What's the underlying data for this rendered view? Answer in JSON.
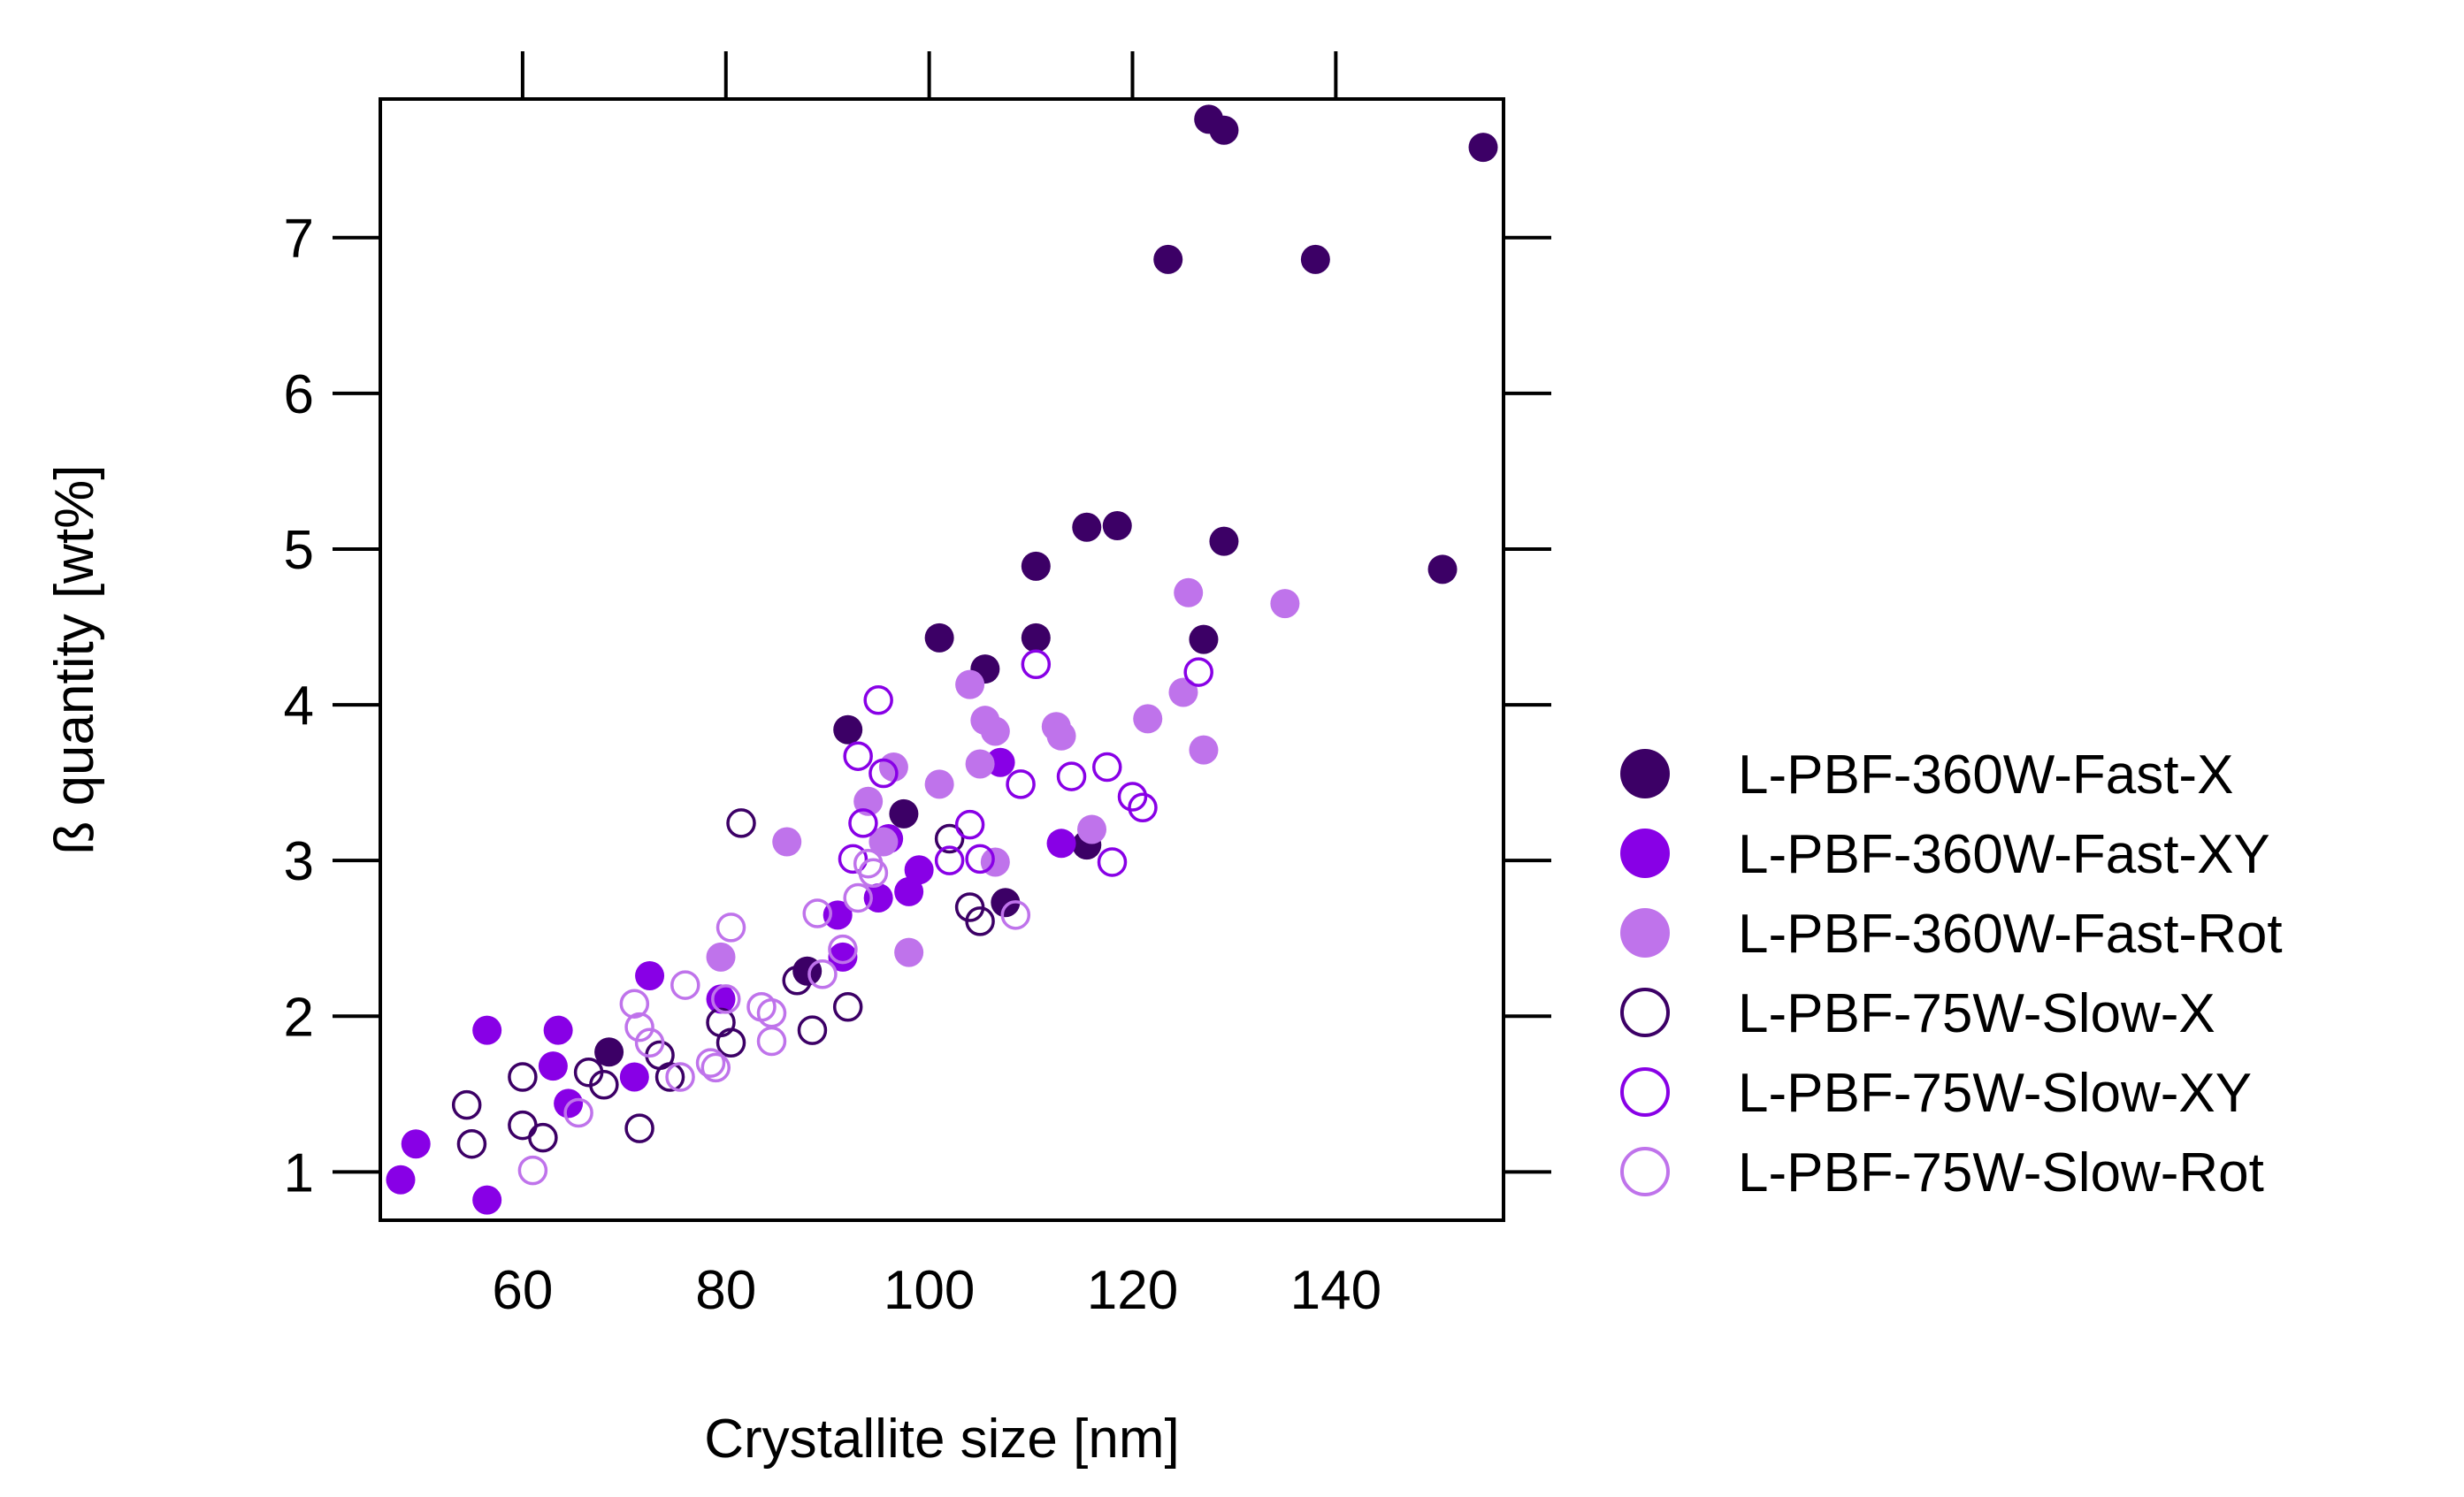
{
  "chart_data": {
    "type": "scatter",
    "title": "",
    "xlabel": "Crystallite size [nm]",
    "ylabel": "ß quantity [wt%]",
    "xlim": [
      46.0,
      156.5
    ],
    "ylim": [
      0.69,
      7.89
    ],
    "xticks": [
      60,
      80,
      100,
      120,
      140
    ],
    "yticks": [
      1,
      2,
      3,
      4,
      5,
      6,
      7
    ],
    "legend_position": "right",
    "series": [
      {
        "name": "L-PBF-360W-Fast-X",
        "color": "#3c0066",
        "filled": true,
        "points": [
          [
            127.5,
            7.76
          ],
          [
            129,
            7.69
          ],
          [
            154.5,
            7.58
          ],
          [
            123.5,
            6.86
          ],
          [
            138,
            6.86
          ],
          [
            115.5,
            5.14
          ],
          [
            118.5,
            5.15
          ],
          [
            110.5,
            4.89
          ],
          [
            129,
            5.05
          ],
          [
            150.5,
            4.87
          ],
          [
            101,
            4.43
          ],
          [
            110.5,
            4.43
          ],
          [
            105.5,
            4.23
          ],
          [
            127,
            4.42
          ],
          [
            92,
            3.84
          ],
          [
            97.5,
            3.3
          ],
          [
            115.5,
            3.1
          ],
          [
            107.5,
            2.73
          ],
          [
            88,
            2.29
          ],
          [
            68.5,
            1.77
          ]
        ]
      },
      {
        "name": "L-PBF-360W-Fast-XY",
        "color": "#8800e6",
        "filled": true,
        "points": [
          [
            56.5,
            1.91
          ],
          [
            63.5,
            1.91
          ],
          [
            63,
            1.68
          ],
          [
            64.5,
            1.44
          ],
          [
            49.5,
            1.18
          ],
          [
            48,
            0.95
          ],
          [
            56.5,
            0.82
          ],
          [
            71,
            1.61
          ],
          [
            72.5,
            2.26
          ],
          [
            79.5,
            2.11
          ],
          [
            91.5,
            2.38
          ],
          [
            91,
            2.65
          ],
          [
            95,
            2.76
          ],
          [
            98,
            2.8
          ],
          [
            99,
            2.94
          ],
          [
            96,
            3.14
          ],
          [
            107,
            3.63
          ],
          [
            113,
            3.11
          ]
        ]
      },
      {
        "name": "L-PBF-360W-Fast-Rot",
        "color": "#bf73eb",
        "filled": true,
        "points": [
          [
            79.5,
            2.38
          ],
          [
            86,
            3.12
          ],
          [
            94,
            3.38
          ],
          [
            95.5,
            3.12
          ],
          [
            96.5,
            3.6
          ],
          [
            98,
            2.41
          ],
          [
            101,
            3.49
          ],
          [
            104,
            4.13
          ],
          [
            105,
            3.62
          ],
          [
            105.5,
            3.9
          ],
          [
            106.5,
            3.83
          ],
          [
            106.5,
            2.99
          ],
          [
            112.5,
            3.86
          ],
          [
            113,
            3.8
          ],
          [
            116,
            3.2
          ],
          [
            121.5,
            3.91
          ],
          [
            125,
            4.08
          ],
          [
            125.5,
            4.72
          ],
          [
            127,
            3.71
          ],
          [
            135,
            4.65
          ]
        ]
      },
      {
        "name": "L-PBF-75W-Slow-X",
        "color": "#3c0066",
        "filled": false,
        "points": [
          [
            54.5,
            1.43
          ],
          [
            55,
            1.18
          ],
          [
            60,
            1.3
          ],
          [
            60,
            1.61
          ],
          [
            62,
            1.22
          ],
          [
            66.5,
            1.64
          ],
          [
            68,
            1.56
          ],
          [
            71.5,
            1.28
          ],
          [
            73.5,
            1.75
          ],
          [
            74.5,
            1.61
          ],
          [
            79.5,
            1.96
          ],
          [
            80.5,
            1.83
          ],
          [
            81.5,
            3.24
          ],
          [
            87,
            2.23
          ],
          [
            88.5,
            1.91
          ],
          [
            92,
            2.06
          ],
          [
            102,
            3.14
          ],
          [
            104,
            2.7
          ],
          [
            105,
            2.61
          ]
        ]
      },
      {
        "name": "L-PBF-75W-Slow-XY",
        "color": "#8800e6",
        "filled": false,
        "points": [
          [
            92.5,
            3.01
          ],
          [
            93,
            3.67
          ],
          [
            93.5,
            3.24
          ],
          [
            95,
            4.03
          ],
          [
            95.5,
            3.56
          ],
          [
            102,
            3.0
          ],
          [
            104,
            3.23
          ],
          [
            105,
            3.01
          ],
          [
            109,
            3.49
          ],
          [
            110.5,
            4.26
          ],
          [
            114,
            3.54
          ],
          [
            117.5,
            3.6
          ],
          [
            118,
            2.99
          ],
          [
            120,
            3.41
          ],
          [
            121,
            3.34
          ],
          [
            126.5,
            4.21
          ]
        ]
      },
      {
        "name": "L-PBF-75W-Slow-Rot",
        "color": "#bf73eb",
        "filled": false,
        "points": [
          [
            61,
            1.01
          ],
          [
            65.5,
            1.38
          ],
          [
            71,
            2.08
          ],
          [
            71.5,
            1.93
          ],
          [
            72.5,
            1.83
          ],
          [
            75.5,
            1.61
          ],
          [
            76,
            2.2
          ],
          [
            78.5,
            1.7
          ],
          [
            79,
            1.67
          ],
          [
            80,
            2.11
          ],
          [
            80.5,
            2.57
          ],
          [
            83.5,
            2.06
          ],
          [
            84.5,
            2.02
          ],
          [
            84.5,
            1.84
          ],
          [
            89,
            2.66
          ],
          [
            89.5,
            2.27
          ],
          [
            91.5,
            2.43
          ],
          [
            93,
            2.76
          ],
          [
            94,
            2.98
          ],
          [
            94.5,
            2.92
          ],
          [
            108.5,
            2.65
          ]
        ]
      }
    ]
  }
}
